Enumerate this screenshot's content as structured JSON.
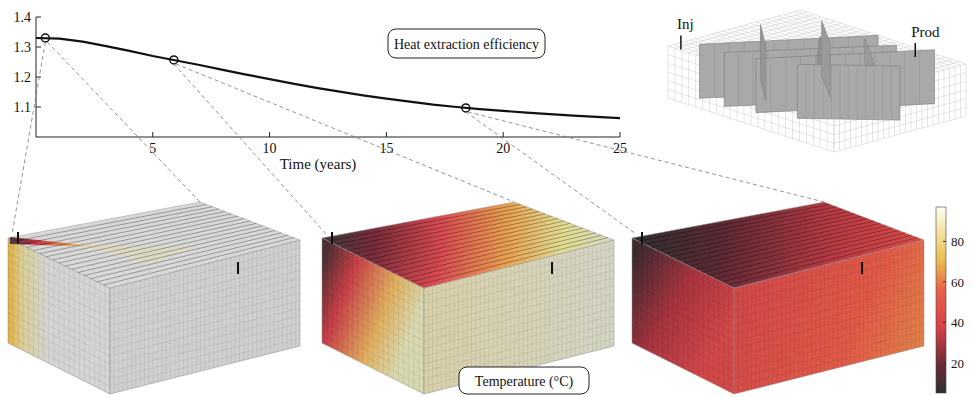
{
  "chart_data": {
    "type": "line",
    "title": "Heat extraction efficiency",
    "x_label": "Time (years)",
    "x": [
      0,
      1,
      2,
      3,
      4,
      5,
      6,
      7,
      8,
      9,
      10,
      11,
      12,
      13,
      14,
      15,
      16,
      17,
      18,
      19,
      20,
      21,
      22,
      23,
      24,
      25
    ],
    "xlim": [
      0,
      25
    ],
    "xticks": [
      5,
      10,
      15,
      20,
      25
    ],
    "ylim": [
      1.0,
      1.4
    ],
    "yticks": [
      1.1,
      1.2,
      1.3,
      1.4
    ],
    "series": [
      {
        "color": "#111111",
        "line_style": "solid",
        "values": [
          1.33,
          1.328,
          1.318,
          1.303,
          1.287,
          1.27,
          1.255,
          1.24,
          1.224,
          1.208,
          1.193,
          1.178,
          1.164,
          1.151,
          1.139,
          1.128,
          1.118,
          1.108,
          1.1,
          1.093,
          1.087,
          1.081,
          1.076,
          1.071,
          1.067,
          1.063
        ]
      },
      {
        "color": "#111111",
        "marker": "circle",
        "line_style": "none",
        "x": [
          0.4,
          5.9,
          18.4
        ],
        "values": [
          1.33,
          1.257,
          1.097
        ]
      }
    ]
  },
  "figure": {
    "wells": {
      "injector": "Inj",
      "producer": "Prod"
    },
    "colorbar": {
      "label": "Temperature (°C)",
      "range": [
        5,
        97
      ],
      "ticks": [
        20,
        40,
        60,
        80
      ]
    }
  }
}
